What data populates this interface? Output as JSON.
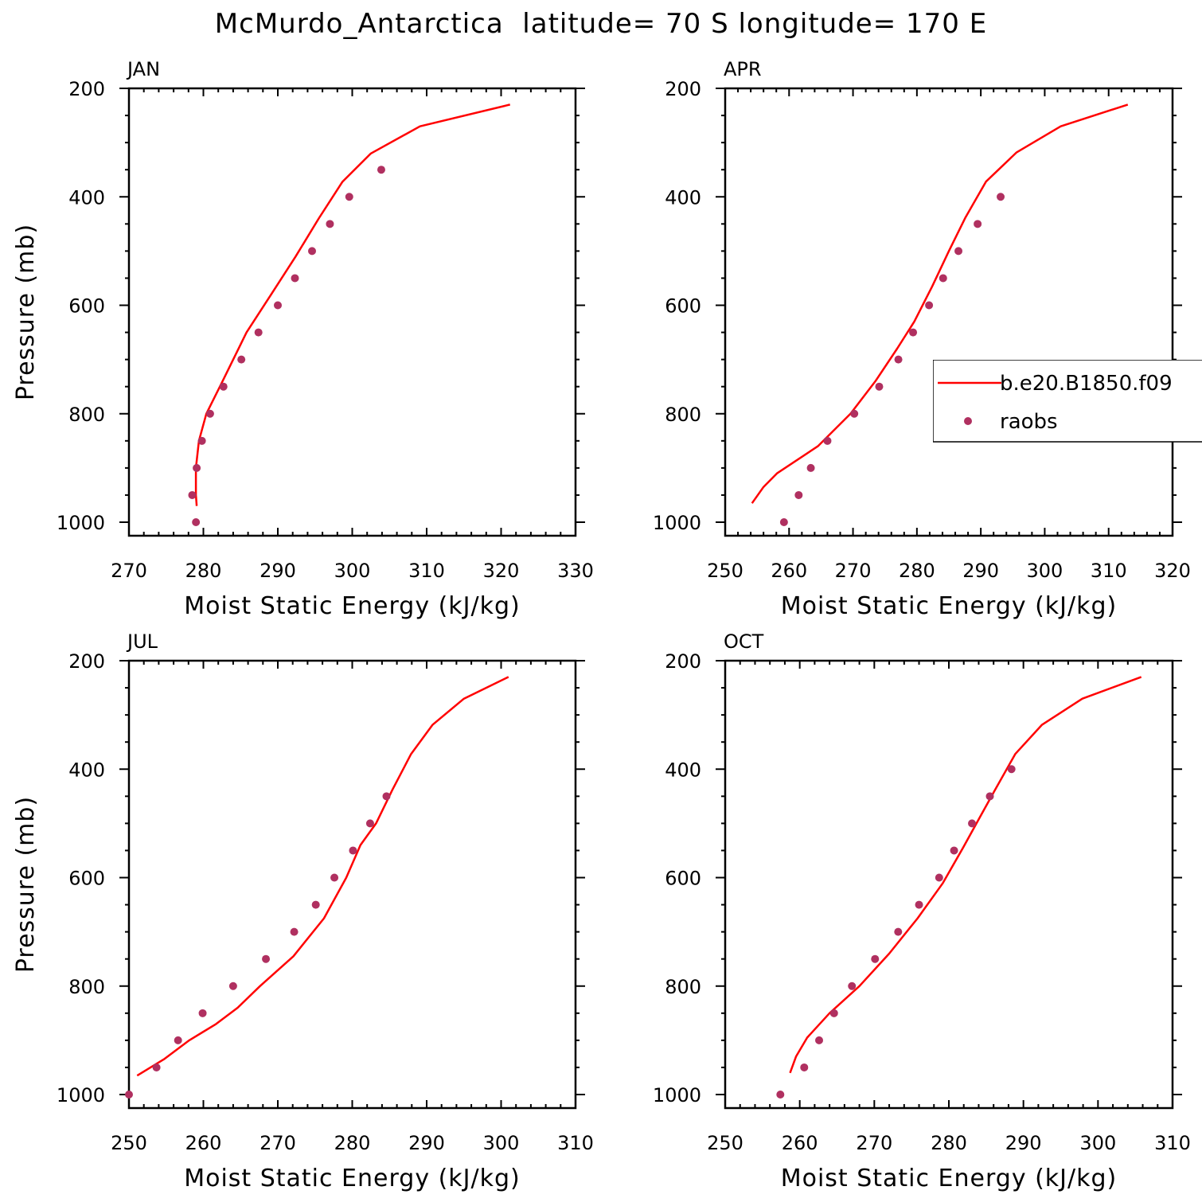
{
  "title": "McMurdo_Antarctica  latitude= 70 S longitude= 170 E",
  "colors": {
    "model_line": "#ff0000",
    "obs_points": "#b03060"
  },
  "legend": {
    "model_label": "b.e20.B1850.f09",
    "obs_label": "raobs"
  },
  "chart_data": [
    {
      "type": "line",
      "panel": "JAN",
      "xlabel": "Moist Static Energy (kJ/kg)",
      "ylabel": "Pressure (mb)",
      "xlim": [
        270,
        330
      ],
      "ylim": [
        200,
        1020
      ],
      "xticks": [
        270,
        280,
        290,
        300,
        310,
        320,
        330
      ],
      "yticks": [
        200,
        400,
        600,
        800,
        1000
      ],
      "series": [
        {
          "name": "b.e20.B1850.f09",
          "x": [
            321.2,
            309.1,
            302.5,
            298.7,
            295.5,
            292.4,
            289.1,
            285.8,
            282.4,
            280.4,
            279.4,
            279.0,
            279.0,
            279.1
          ],
          "y": [
            230,
            270,
            320,
            372,
            440,
            510,
            580,
            650,
            745,
            800,
            850,
            900,
            950,
            970
          ]
        },
        {
          "name": "raobs",
          "x": [
            303.9,
            299.6,
            297.0,
            294.6,
            292.3,
            290.0,
            287.4,
            285.1,
            282.7,
            280.9,
            279.8,
            279.1,
            278.5,
            279.0
          ],
          "y": [
            350,
            400,
            450,
            500,
            550,
            600,
            650,
            700,
            750,
            800,
            850,
            900,
            950,
            1000
          ]
        }
      ]
    },
    {
      "type": "line",
      "panel": "APR",
      "xlabel": "Moist Static Energy (kJ/kg)",
      "ylabel": "",
      "xlim": [
        250,
        320
      ],
      "ylim": [
        200,
        1020
      ],
      "xticks": [
        250,
        260,
        270,
        280,
        290,
        300,
        310,
        320
      ],
      "yticks": [
        200,
        400,
        600,
        800,
        1000
      ],
      "series": [
        {
          "name": "b.e20.B1850.f09",
          "x": [
            313.0,
            302.5,
            295.6,
            290.8,
            287.6,
            285.0,
            282.4,
            279.6,
            276.9,
            273.5,
            269.6,
            264.5,
            258.1,
            256.0,
            254.2
          ],
          "y": [
            230,
            270,
            318,
            372,
            438,
            500,
            565,
            630,
            680,
            740,
            800,
            860,
            910,
            935,
            965
          ]
        },
        {
          "name": "raobs",
          "x": [
            293.1,
            289.5,
            286.5,
            284.1,
            281.9,
            279.4,
            277.1,
            274.1,
            270.2,
            266.0,
            263.4,
            261.5,
            259.2
          ],
          "y": [
            400,
            450,
            500,
            550,
            600,
            650,
            700,
            750,
            800,
            850,
            900,
            950,
            1000
          ]
        }
      ]
    },
    {
      "type": "line",
      "panel": "JUL",
      "xlabel": "Moist Static Energy (kJ/kg)",
      "ylabel": "Pressure (mb)",
      "xlim": [
        250,
        310
      ],
      "ylim": [
        200,
        1020
      ],
      "xticks": [
        250,
        260,
        270,
        280,
        290,
        300,
        310
      ],
      "yticks": [
        200,
        400,
        600,
        800,
        1000
      ],
      "series": [
        {
          "name": "b.e20.B1850.f09",
          "x": [
            301.0,
            295.0,
            290.8,
            287.9,
            285.4,
            283.2,
            281.1,
            279.2,
            276.2,
            272.1,
            267.6,
            264.6,
            261.7,
            258.1,
            254.7,
            251.1
          ],
          "y": [
            230,
            270,
            318,
            372,
            438,
            500,
            540,
            600,
            675,
            745,
            800,
            840,
            870,
            900,
            935,
            965
          ]
        },
        {
          "name": "raobs",
          "x": [
            284.6,
            282.4,
            280.1,
            277.6,
            275.1,
            272.2,
            268.4,
            264.0,
            259.9,
            256.6,
            253.7,
            250.0
          ],
          "y": [
            450,
            500,
            550,
            600,
            650,
            700,
            750,
            800,
            850,
            900,
            950,
            1000
          ]
        }
      ]
    },
    {
      "type": "line",
      "panel": "OCT",
      "xlabel": "Moist Static Energy (kJ/kg)",
      "ylabel": "",
      "xlim": [
        250,
        310
      ],
      "ylim": [
        200,
        1020
      ],
      "xticks": [
        250,
        260,
        270,
        280,
        290,
        300,
        310
      ],
      "yticks": [
        200,
        400,
        600,
        800,
        1000
      ],
      "series": [
        {
          "name": "b.e20.B1850.f09",
          "x": [
            305.8,
            297.9,
            292.5,
            288.9,
            286.2,
            284.1,
            281.9,
            279.2,
            275.8,
            272.0,
            268.0,
            264.0,
            261.0,
            259.5,
            258.7
          ],
          "y": [
            230,
            270,
            318,
            372,
            438,
            490,
            545,
            610,
            675,
            740,
            800,
            850,
            895,
            930,
            960
          ]
        },
        {
          "name": "raobs",
          "x": [
            288.4,
            285.5,
            283.1,
            280.7,
            278.7,
            276.0,
            273.2,
            270.1,
            267.0,
            264.6,
            262.6,
            260.6,
            257.4
          ],
          "y": [
            400,
            450,
            500,
            550,
            600,
            650,
            700,
            750,
            800,
            850,
            900,
            950,
            1000
          ]
        }
      ]
    }
  ]
}
